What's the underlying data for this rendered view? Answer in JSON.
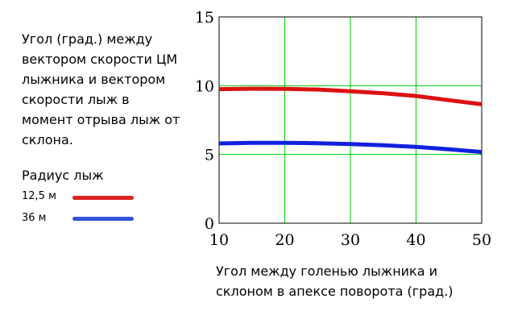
{
  "chart_data": {
    "type": "line",
    "title_lines": [
      "Угол (град.) между",
      "вектором скорости",
      "ЦМ лыжника и",
      "вектором скорости",
      "лыж в момент",
      "отрыва лыж от",
      "склона."
    ],
    "legend_title": "Радиус лыж",
    "xlabel_lines": [
      "Угол между голенью лыжника и",
      "склоном в апексе поворота (град.)"
    ],
    "ylabel": "",
    "xlim": [
      10,
      50
    ],
    "ylim": [
      0,
      15
    ],
    "xticks": [
      10,
      20,
      30,
      40,
      50
    ],
    "yticks": [
      0,
      5,
      10,
      15
    ],
    "grid": true,
    "grid_color": "#00cc00",
    "legend_placement": "left",
    "x": [
      10,
      15,
      20,
      25,
      30,
      35,
      40,
      45,
      50
    ],
    "series": [
      {
        "name": "12,5 м",
        "color": "#dd1111",
        "values": [
          9.75,
          9.78,
          9.77,
          9.72,
          9.6,
          9.45,
          9.25,
          8.95,
          8.65
        ]
      },
      {
        "name": "36 м",
        "color": "#1122dd",
        "values": [
          5.8,
          5.85,
          5.85,
          5.82,
          5.76,
          5.67,
          5.55,
          5.38,
          5.18
        ]
      }
    ],
    "legend_colors": [
      "#dd2222",
      "#3355dd"
    ]
  }
}
